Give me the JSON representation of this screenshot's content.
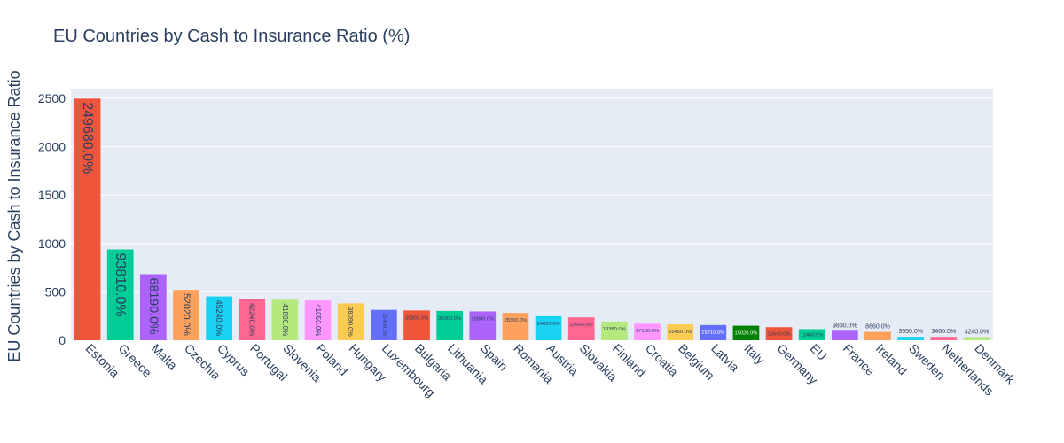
{
  "chart_data": {
    "type": "bar",
    "title": "EU Countries by Cash to Insurance Ratio (%)",
    "xlabel": "",
    "ylabel": "EU Countries by Cash to Insurance Ratio",
    "ylim": [
      0,
      2600
    ],
    "yticks": [
      0,
      500,
      1000,
      1500,
      2000,
      2500
    ],
    "grid": true,
    "categories": [
      "Estonia",
      "Greece",
      "Malta",
      "Czechia",
      "Cyprus",
      "Portugal",
      "Slovenia",
      "Poland",
      "Hungary",
      "Luxembourg",
      "Bulgaria",
      "Lithuania",
      "Spain",
      "Romania",
      "Austria",
      "Slovakia",
      "Finland",
      "Croatia",
      "Belgium",
      "Latvia",
      "Italy",
      "Germany",
      "EU",
      "France",
      "Ireland",
      "Sweden",
      "Netherlands",
      "Denmark"
    ],
    "values": [
      2496.8,
      938.1,
      681.9,
      520.2,
      452.4,
      422.4,
      418.0,
      410.5,
      380.9,
      314.0,
      308.0,
      303.0,
      298.0,
      283.0,
      248.2,
      236.6,
      193.8,
      171.3,
      164.5,
      157.1,
      150.2,
      135.4,
      114.6,
      98.3,
      86.6,
      35.5,
      34.6,
      32.4
    ],
    "data_labels": [
      "249680.0%",
      "93810.0%",
      "68190.0%",
      "52020.0%",
      "45240.0%",
      "42240.0%",
      "41800.0%",
      "41050.0%",
      "38090.0%",
      "31400.0%",
      "30800.0%",
      "30300.0%",
      "29800.0%",
      "28300.0%",
      "24820.0%",
      "23660.0%",
      "19380.0%",
      "17130.0%",
      "16450.0%",
      "15710.0%",
      "15020.0%",
      "13540.0%",
      "11460.0%",
      "9830.0%",
      "8660.0%",
      "3550.0%",
      "3460.0%",
      "3240.0%"
    ],
    "colors": [
      "#EF553B",
      "#00CC96",
      "#AB63FA",
      "#FFA15A",
      "#19D3F3",
      "#FF6692",
      "#B6E880",
      "#FF97FF",
      "#FECB52",
      "#636EFA",
      "#EF553B",
      "#00CC96",
      "#AB63FA",
      "#FFA15A",
      "#19D3F3",
      "#FF6692",
      "#B6E880",
      "#FF97FF",
      "#FECB52",
      "#636EFA",
      "#008000",
      "#EF553B",
      "#00CC96",
      "#AB63FA",
      "#FFA15A",
      "#19D3F3",
      "#FF6692",
      "#B6E880"
    ],
    "plot_bg": "#E5ECF6",
    "grid_color": "#FFFFFF",
    "text_color": "#2a3f5f"
  }
}
